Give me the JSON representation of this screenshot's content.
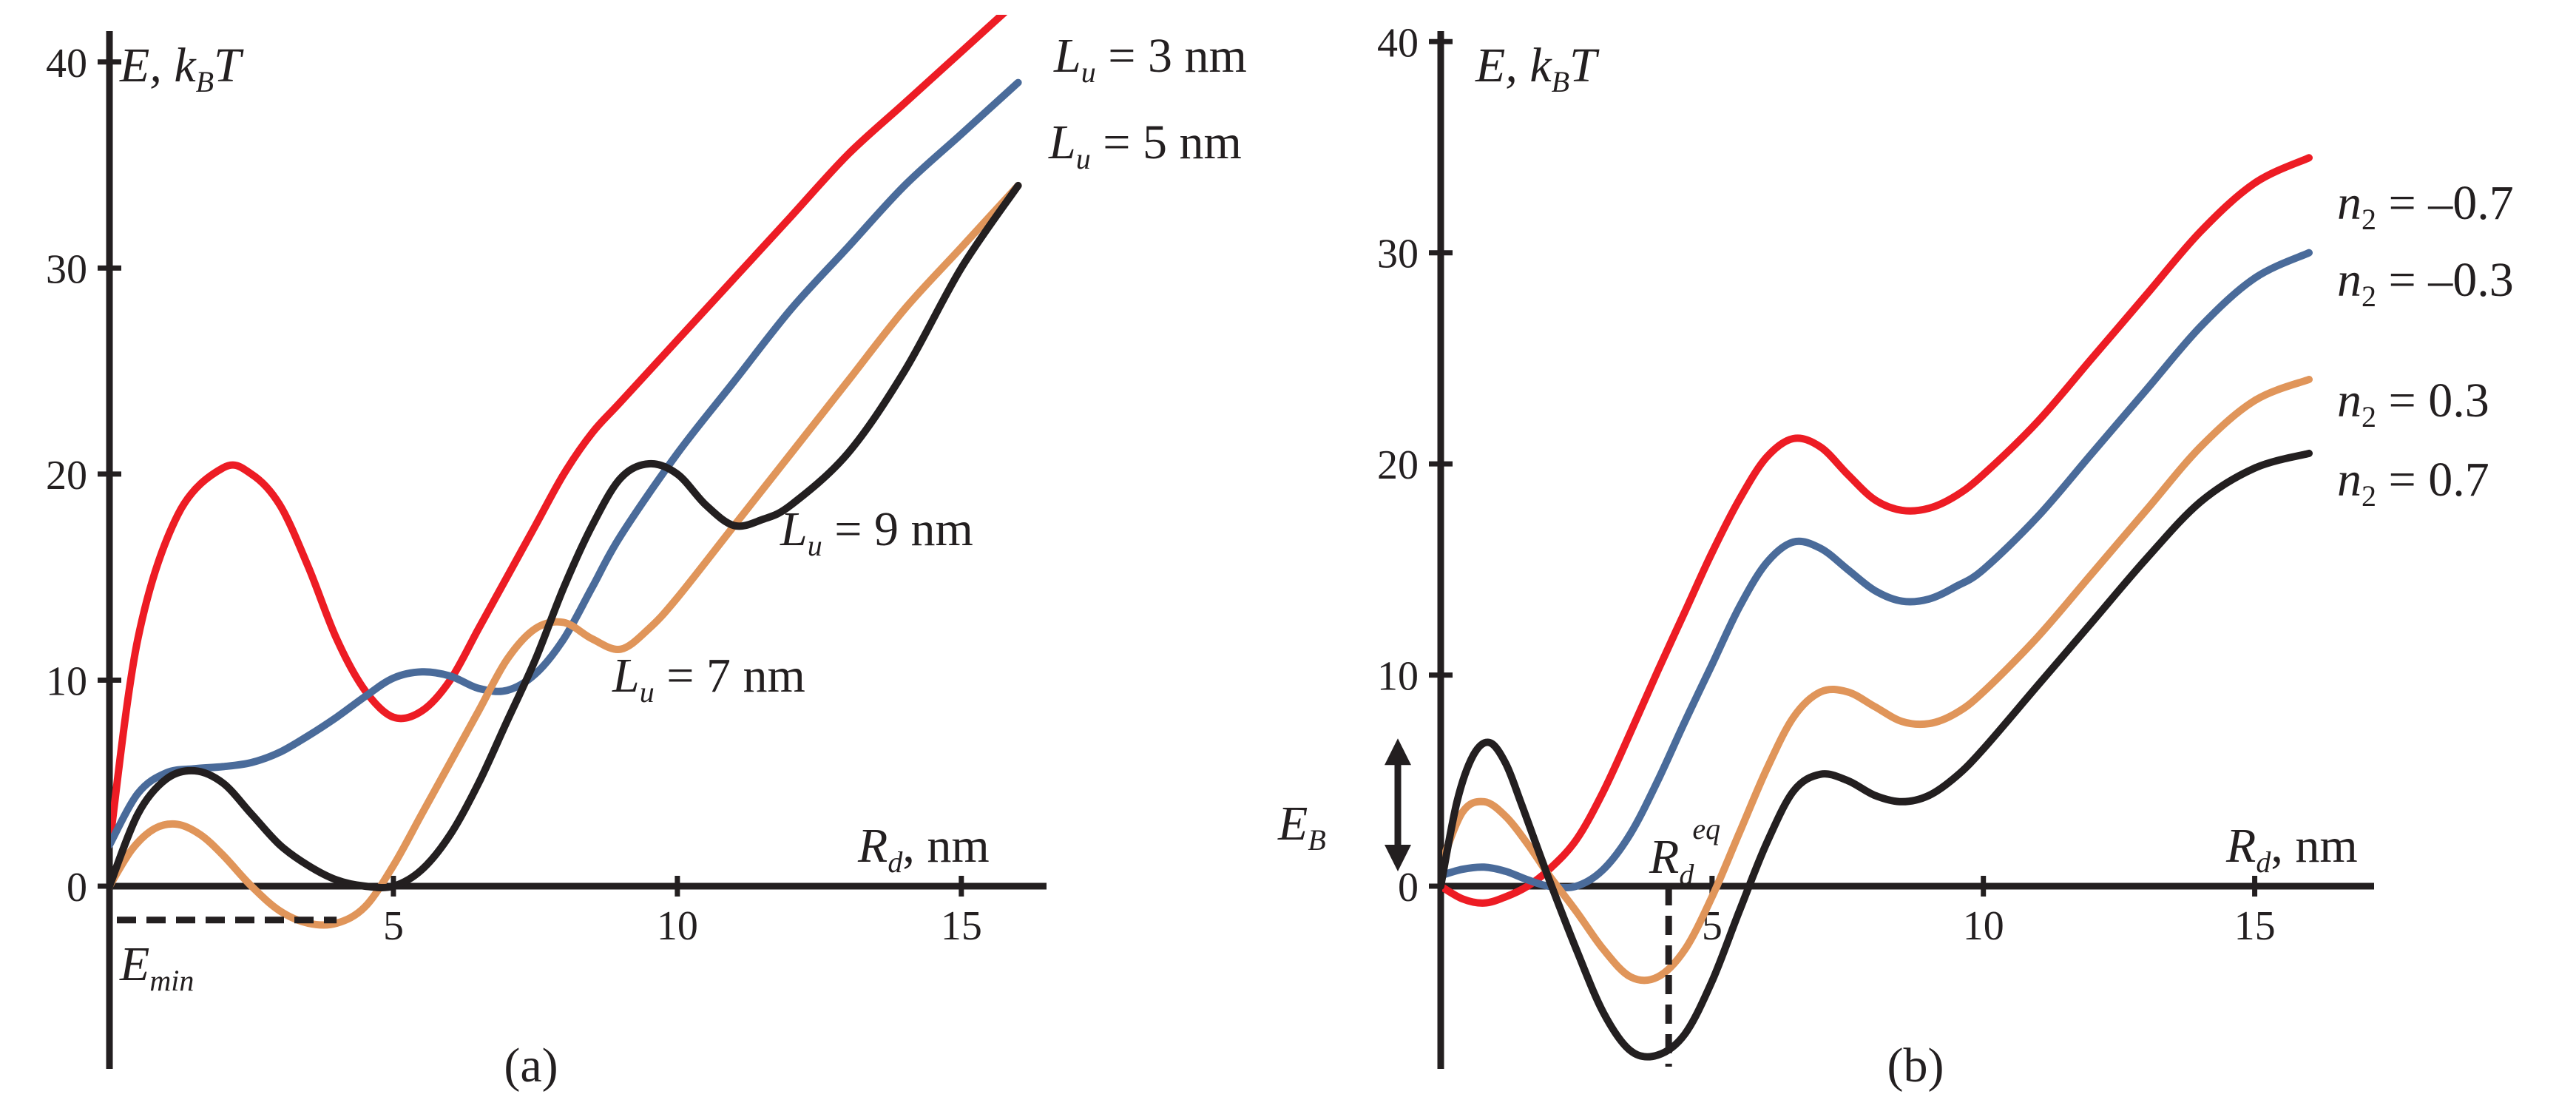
{
  "chart_data": [
    {
      "type": "line",
      "panel_label": "(a)",
      "ylabel": {
        "main": "E, k",
        "sub": "B",
        "tail": "T"
      },
      "xlabel": {
        "main": "R",
        "sub": "d",
        "tail": ", nm"
      },
      "xlim": [
        0,
        16.5
      ],
      "ylim": [
        -8.5,
        41.5
      ],
      "x_ticks": [
        5,
        10,
        15
      ],
      "y_ticks": [
        0,
        10,
        20,
        30,
        40
      ],
      "annotation_min": {
        "main": "E",
        "sub": "min",
        "value": -1.5,
        "x_end": 4
      },
      "series": [
        {
          "name": "L_u = 3 nm",
          "label_main": "L",
          "label_sub": "u",
          "label_tail": " = 3 nm",
          "color": "#ed1c24",
          "x": [
            0,
            0.5,
            1.2,
            2,
            2.5,
            3,
            3.5,
            4,
            4.5,
            5,
            5.5,
            6,
            6.5,
            7,
            7.5,
            8,
            8.5,
            9,
            10,
            11,
            12,
            13,
            14,
            15,
            16
          ],
          "y": [
            2,
            12,
            18,
            20.3,
            20,
            18.5,
            15.5,
            12,
            9.5,
            8.2,
            8.5,
            10,
            12.5,
            15,
            17.5,
            20,
            22,
            23.5,
            26.5,
            29.5,
            32.5,
            35.5,
            38,
            40.5,
            43
          ]
        },
        {
          "name": "L_u = 5 nm",
          "label_main": "L",
          "label_sub": "u",
          "label_tail": " = 5 nm",
          "color": "#4a6b9a",
          "x": [
            0,
            0.5,
            1,
            1.5,
            2,
            2.5,
            3,
            3.5,
            4,
            4.5,
            5,
            5.5,
            6,
            6.5,
            7,
            7.5,
            8,
            8.5,
            9,
            10,
            11,
            12,
            13,
            14,
            15,
            16
          ],
          "y": [
            2,
            4.5,
            5.5,
            5.7,
            5.8,
            6,
            6.5,
            7.3,
            8.2,
            9.2,
            10.1,
            10.4,
            10.2,
            9.6,
            9.5,
            10.3,
            12,
            14.5,
            17,
            21,
            24.5,
            28,
            31,
            34,
            36.5,
            39
          ]
        },
        {
          "name": "L_u = 7 nm",
          "label_main": "L",
          "label_sub": "u",
          "label_tail": " = 7 nm",
          "color": "#e0955a",
          "x": [
            0,
            0.4,
            0.8,
            1.2,
            1.6,
            2,
            2.5,
            3,
            3.5,
            4,
            4.5,
            5,
            5.5,
            6,
            6.5,
            7,
            7.5,
            8,
            8.5,
            9,
            9.5,
            10,
            11,
            12,
            13,
            14,
            15,
            16
          ],
          "y": [
            0,
            1.8,
            2.8,
            3,
            2.5,
            1.5,
            0,
            -1.2,
            -1.8,
            -1.8,
            -1,
            1,
            3.5,
            6,
            8.5,
            11,
            12.5,
            12.8,
            12,
            11.5,
            12.5,
            14,
            17.5,
            21,
            24.5,
            28,
            31,
            34
          ]
        },
        {
          "name": "L_u = 9 nm",
          "label_main": "L",
          "label_sub": "u",
          "label_tail": " = 9 nm",
          "color": "#231f20",
          "x": [
            0,
            0.5,
            1,
            1.5,
            2,
            2.5,
            3,
            3.5,
            4,
            4.5,
            5,
            5.5,
            6,
            6.5,
            7,
            7.5,
            8,
            8.5,
            9,
            9.5,
            10,
            10.5,
            11,
            11.5,
            12,
            13,
            14,
            15,
            16
          ],
          "y": [
            0,
            3.5,
            5.2,
            5.6,
            5,
            3.5,
            2,
            1,
            0.3,
            0,
            0,
            0.8,
            2.5,
            5,
            8,
            11,
            14.5,
            17.5,
            19.8,
            20.5,
            20,
            18.5,
            17.5,
            17.8,
            18.5,
            21,
            25,
            30,
            34
          ]
        }
      ]
    },
    {
      "type": "line",
      "panel_label": "(b)",
      "ylabel": {
        "main": "E, k",
        "sub": "B",
        "tail": "T"
      },
      "xlabel": {
        "main": "R",
        "sub": "d",
        "tail": ", nm"
      },
      "xlim": [
        0,
        17.2
      ],
      "ylim": [
        -8.2,
        40.5
      ],
      "x_ticks": [
        5,
        10,
        15
      ],
      "y_ticks": [
        0,
        10,
        20,
        30,
        40
      ],
      "annotation_eb": {
        "main": "E",
        "sub": "B",
        "from": 0,
        "to": 7
      },
      "annotation_req": {
        "main": "R",
        "sub": "d",
        "sup": "eq",
        "x": 4.2,
        "y_bottom": -8.2
      },
      "series": [
        {
          "name": "n_2 = –0.7",
          "label_main": "n",
          "label_sub": "2",
          "label_tail": " = –0.7",
          "color": "#ed1c24",
          "x": [
            0,
            0.4,
            0.8,
            1.2,
            1.6,
            2,
            2.5,
            3,
            3.5,
            4,
            4.5,
            5,
            5.5,
            6,
            6.5,
            7,
            7.5,
            8,
            8.5,
            9,
            9.5,
            10,
            11,
            12,
            13,
            14,
            15,
            16
          ],
          "y": [
            0,
            -0.6,
            -0.8,
            -0.5,
            0,
            0.8,
            2.2,
            4.5,
            7.3,
            10.2,
            13,
            15.8,
            18.3,
            20.3,
            21.2,
            20.8,
            19.5,
            18.3,
            17.8,
            17.9,
            18.5,
            19.5,
            22,
            25,
            28,
            31,
            33.3,
            34.5
          ]
        },
        {
          "name": "n_2 = –0.3",
          "label_main": "n",
          "label_sub": "2",
          "label_tail": " = –0.3",
          "color": "#4a6b9a",
          "x": [
            0,
            0.4,
            0.8,
            1.2,
            1.6,
            2,
            2.5,
            3,
            3.5,
            4,
            4.5,
            5,
            5.5,
            6,
            6.5,
            7,
            7.5,
            8,
            8.5,
            9,
            9.5,
            10,
            11,
            12,
            13,
            14,
            15,
            16
          ],
          "y": [
            0.5,
            0.8,
            0.9,
            0.7,
            0.3,
            0,
            0,
            0.8,
            2.5,
            5,
            7.8,
            10.5,
            13.2,
            15.3,
            16.3,
            16,
            15,
            14,
            13.5,
            13.6,
            14.2,
            15,
            17.5,
            20.5,
            23.5,
            26.5,
            28.8,
            30
          ]
        },
        {
          "name": "n_2 = 0.3",
          "label_main": "n",
          "label_sub": "2",
          "label_tail": " = 0.3",
          "color": "#e0955a",
          "x": [
            0,
            0.4,
            0.8,
            1.2,
            1.6,
            2,
            2.5,
            3,
            3.5,
            4,
            4.5,
            5,
            5.5,
            6,
            6.5,
            7,
            7.5,
            8,
            8.5,
            9,
            9.5,
            10,
            11,
            12,
            13,
            14,
            15,
            16
          ],
          "y": [
            1,
            3.5,
            4,
            3.3,
            2,
            0.5,
            -1.2,
            -3,
            -4.3,
            -4.3,
            -3,
            -0.5,
            2.5,
            5.5,
            8,
            9.2,
            9.2,
            8.5,
            7.8,
            7.7,
            8.2,
            9.2,
            11.8,
            14.8,
            17.8,
            20.8,
            23,
            24
          ]
        },
        {
          "name": "n_2 = 0.7",
          "label_main": "n",
          "label_sub": "2",
          "label_tail": " = 0.7",
          "color": "#231f20",
          "x": [
            0,
            0.3,
            0.6,
            0.9,
            1.2,
            1.5,
            2,
            2.5,
            3,
            3.5,
            4,
            4.5,
            5,
            5.5,
            6,
            6.5,
            7,
            7.5,
            8,
            8.5,
            9,
            9.5,
            10,
            11,
            12,
            13,
            14,
            15,
            16
          ],
          "y": [
            0,
            4,
            6.2,
            6.8,
            5.8,
            3.8,
            0.3,
            -3,
            -6,
            -7.8,
            -8,
            -7,
            -4.5,
            -1.2,
            2,
            4.5,
            5.3,
            5,
            4.3,
            4,
            4.3,
            5.2,
            6.5,
            9.5,
            12.5,
            15.5,
            18.2,
            19.8,
            20.5
          ]
        }
      ]
    }
  ]
}
